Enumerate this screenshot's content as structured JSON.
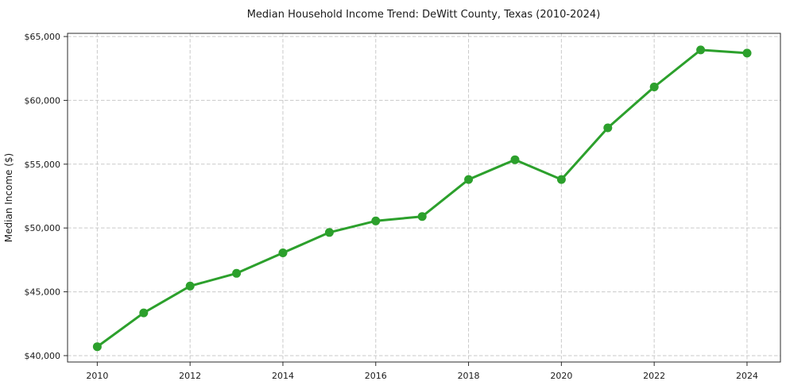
{
  "chart_data": {
    "type": "line",
    "title": "Median Household Income Trend: DeWitt County, Texas (2010-2024)",
    "xlabel": "",
    "ylabel": "Median Income ($)",
    "x": [
      2010,
      2011,
      2012,
      2013,
      2014,
      2015,
      2016,
      2017,
      2018,
      2019,
      2020,
      2021,
      2022,
      2023,
      2024
    ],
    "values": [
      40700,
      43350,
      45450,
      46450,
      48050,
      49650,
      50550,
      50900,
      53800,
      55350,
      53800,
      57850,
      61050,
      63950,
      63700
    ],
    "xticks": [
      2010,
      2012,
      2014,
      2016,
      2018,
      2020,
      2022,
      2024
    ],
    "xtick_labels": [
      "2010",
      "2012",
      "2014",
      "2016",
      "2018",
      "2020",
      "2022",
      "2024"
    ],
    "yticks": [
      40000,
      45000,
      50000,
      55000,
      60000,
      65000
    ],
    "ytick_labels": [
      "$40,000",
      "$45,000",
      "$50,000",
      "$55,000",
      "$60,000",
      "$65,000"
    ],
    "xlim": [
      2009.36,
      2024.72
    ],
    "ylim": [
      39500,
      65250
    ],
    "grid": true,
    "legend": false,
    "line_color": "#2ca02c",
    "marker": "circle",
    "marker_color": "#2ca02c",
    "grid_color": "#c9c9c9",
    "spine_color": "#2b2b2b",
    "background": "#ffffff"
  }
}
